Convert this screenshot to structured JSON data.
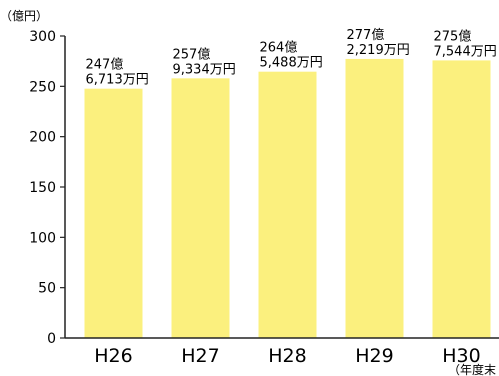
{
  "chart_data": {
    "type": "bar",
    "y_unit_label": "（億円）",
    "x_unit_label": "（年度末",
    "categories": [
      "H26",
      "H27",
      "H28",
      "H29",
      "H30"
    ],
    "values": [
      247.6713,
      257.9334,
      264.5488,
      277.2219,
      275.7544
    ],
    "data_labels": [
      [
        "247億",
        "6,713万円"
      ],
      [
        "257億",
        "9,334万円"
      ],
      [
        "264億",
        "5,488万円"
      ],
      [
        "277億",
        "2,219万円"
      ],
      [
        "275億",
        "7,544万円"
      ]
    ],
    "ylim": [
      0,
      300
    ],
    "yticks": [
      0,
      50,
      100,
      150,
      200,
      250,
      300
    ],
    "grid": false,
    "legend": "none",
    "bar_color": "#FBF07E",
    "axis_color": "#222222"
  }
}
